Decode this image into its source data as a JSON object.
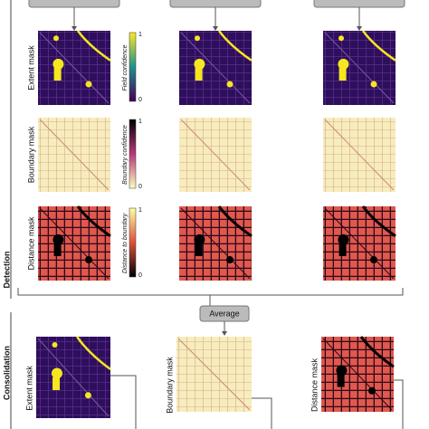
{
  "side_labels": {
    "detection": "Detection",
    "consolidation": "Consolidation"
  },
  "rows": [
    {
      "label": "Extent mask",
      "colorbar": {
        "title": "Field confidence",
        "max": "1",
        "min": "0"
      }
    },
    {
      "label": "Boundary mask",
      "colorbar": {
        "title": "Boundary confidence",
        "max": "1",
        "min": "0"
      }
    },
    {
      "label": "Distance mask",
      "colorbar": {
        "title": "Distance to boundary",
        "max": "1",
        "min": "0"
      }
    }
  ],
  "average": "Average",
  "consolidation_labels": [
    "Extent mask",
    "Boundary mask",
    "Distance mask"
  ]
}
